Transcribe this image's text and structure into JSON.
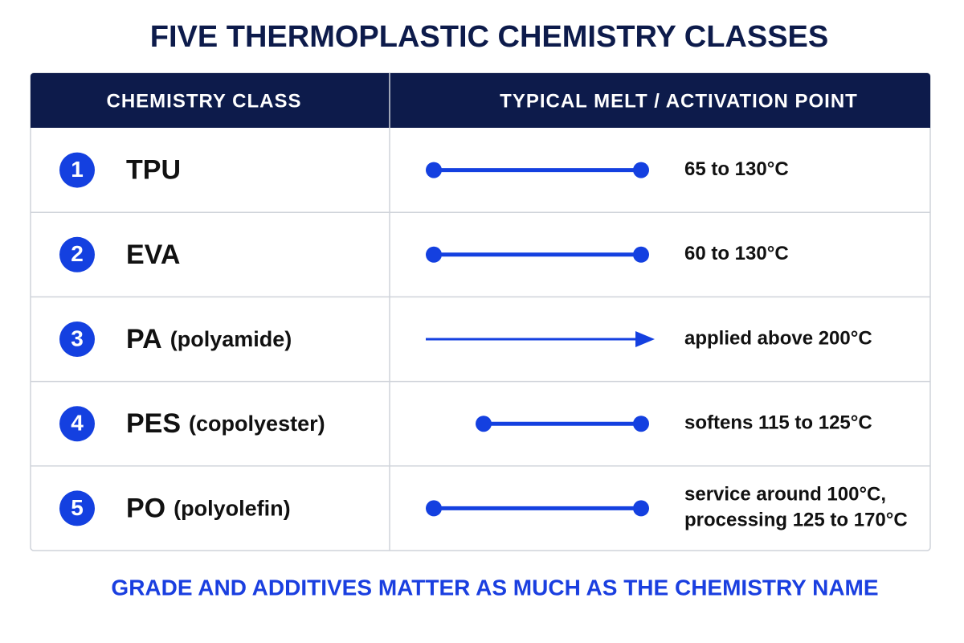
{
  "title": "FIVE THERMOPLASTIC CHEMISTRY CLASSES",
  "table": {
    "header": [
      "CHEMISTRY CLASS",
      "TYPICAL MELT / ACTIVATION POINT"
    ],
    "rows": [
      {
        "number": "1",
        "name": "TPU",
        "range": [
          "65 to 130°C"
        ]
      },
      {
        "number": "2",
        "name": "EVA",
        "range": [
          "60 to 130°C"
        ]
      },
      {
        "number": "3",
        "name": "PA",
        "qualifier": "(polyamide)",
        "range": [
          "applied above 200°C"
        ]
      },
      {
        "number": "4",
        "name": "PES",
        "qualifier": "(copolyester)",
        "range": [
          "softens 115 to 125°C"
        ]
      },
      {
        "number": "5",
        "name": "PO",
        "qualifier": "(polyolefin)",
        "range": [
          "service around 100°C,",
          "processing 125 to 170°C"
        ]
      }
    ]
  },
  "footer": "GRADE AND ADDITIVES MATTER AS MUCH AS THE CHEMISTRY NAME"
}
